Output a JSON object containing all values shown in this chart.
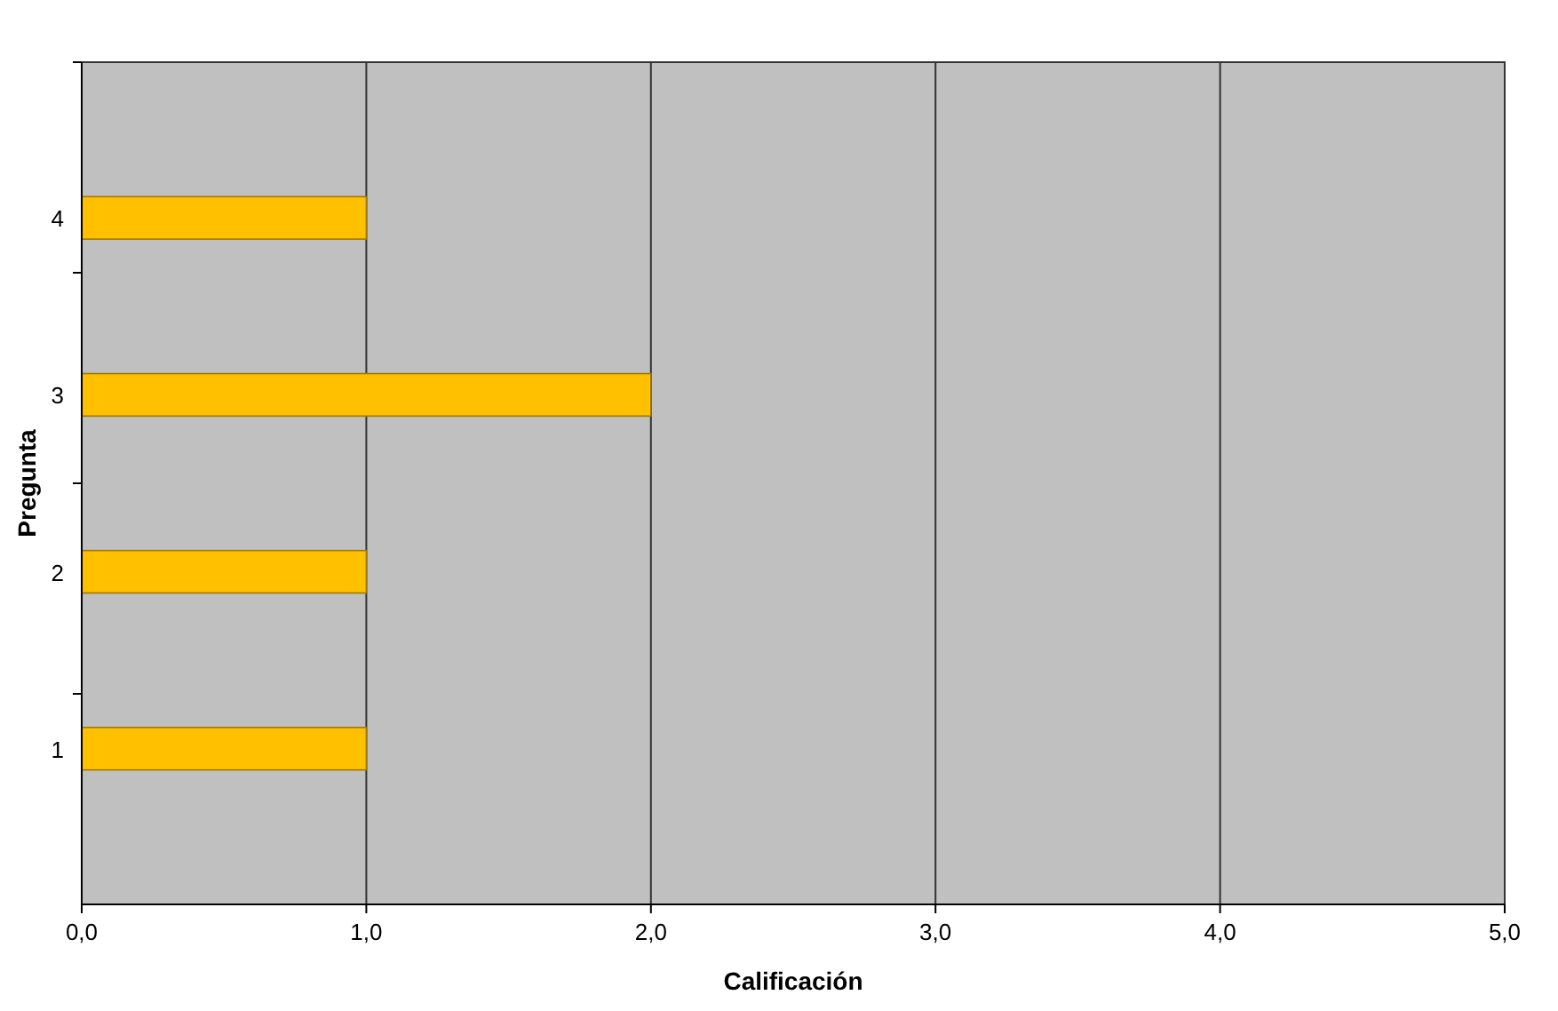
{
  "chart_data": {
    "type": "bar",
    "orientation": "horizontal",
    "xlabel": "Calificación",
    "ylabel": "Pregunta",
    "categories": [
      "4",
      "3",
      "2",
      "1"
    ],
    "values": [
      1,
      2,
      1,
      1
    ],
    "color": "#ffc000",
    "xlim": [
      0,
      5
    ],
    "xticks": [
      {
        "value": 0,
        "label": "0,0"
      },
      {
        "value": 1,
        "label": "1,0"
      },
      {
        "value": 2,
        "label": "2,0"
      },
      {
        "value": 3,
        "label": "3,0"
      },
      {
        "value": 4,
        "label": "4,0"
      },
      {
        "value": 5,
        "label": "5,0"
      }
    ],
    "grid": "x"
  }
}
